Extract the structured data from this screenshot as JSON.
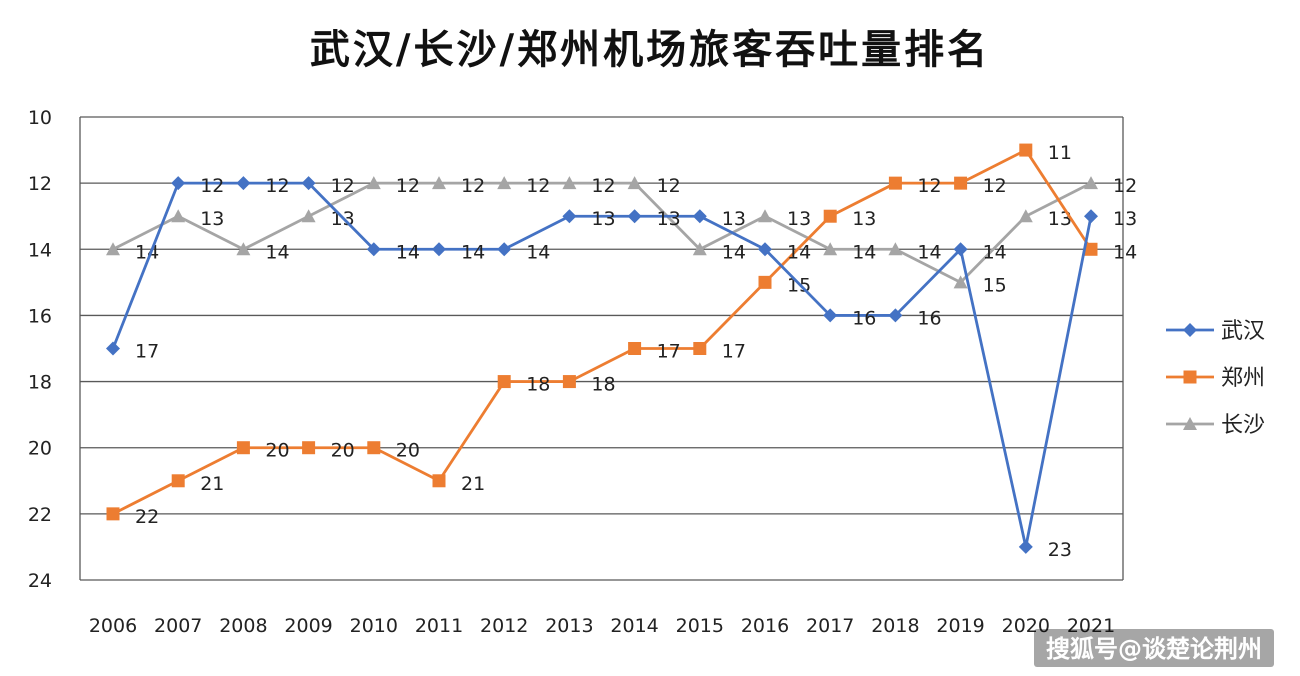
{
  "chart_data": {
    "type": "line",
    "title": "武汉/长沙/郑州机场旅客吞吐量排名",
    "xlabel": "",
    "ylabel": "",
    "x": [
      "2006",
      "2007",
      "2008",
      "2009",
      "2010",
      "2011",
      "2012",
      "2013",
      "2014",
      "2015",
      "2016",
      "2017",
      "2018",
      "2019",
      "2020",
      "2021"
    ],
    "y_ticks": [
      "10",
      "12",
      "14",
      "16",
      "18",
      "20",
      "22",
      "24"
    ],
    "ylim": [
      10,
      24
    ],
    "y_reversed": true,
    "grid": true,
    "legend_position": "right",
    "series": [
      {
        "name": "武汉",
        "color": "#4472C4",
        "marker": "diamond",
        "values": [
          17,
          12,
          12,
          12,
          14,
          14,
          14,
          13,
          13,
          13,
          14,
          16,
          16,
          14,
          23,
          13
        ],
        "labels": [
          "17",
          "12",
          "12",
          "12",
          "14",
          "14",
          "14",
          "13",
          "13",
          "13",
          "14",
          "16",
          "16",
          "14",
          "23",
          "13"
        ]
      },
      {
        "name": "郑州",
        "color": "#ED7D31",
        "marker": "square",
        "values": [
          22,
          21,
          20,
          20,
          20,
          21,
          18,
          18,
          17,
          17,
          15,
          13,
          12,
          12,
          11,
          14
        ],
        "labels": [
          "22",
          "21",
          "20",
          "20",
          "20",
          "21",
          "18",
          "18",
          "17",
          "17",
          "15",
          "13",
          "12",
          "12",
          "11",
          "14"
        ]
      },
      {
        "name": "长沙",
        "color": "#A5A5A5",
        "marker": "triangle",
        "values": [
          14,
          13,
          14,
          13,
          12,
          12,
          12,
          12,
          12,
          14,
          13,
          14,
          14,
          15,
          13,
          12
        ],
        "labels": [
          "14",
          "13",
          "14",
          "13",
          "12",
          "12",
          "12",
          "12",
          "12",
          "14",
          "13",
          "14",
          "14",
          "15",
          "13",
          "12"
        ]
      }
    ]
  },
  "watermark": "搜狐号@谈楚论荆州"
}
